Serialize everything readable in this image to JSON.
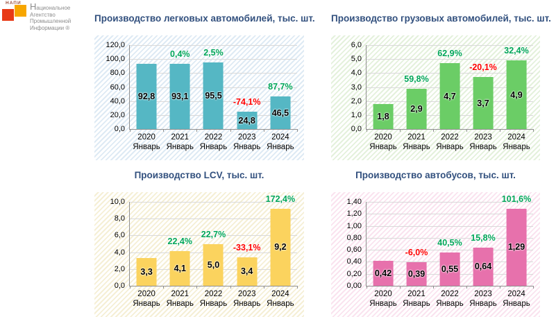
{
  "logo": {
    "acronym": "НАПИ",
    "lines": [
      "Национальное",
      "Агентство",
      "Промышленной",
      "Информации ®"
    ]
  },
  "colors": {
    "title": "#32507e",
    "pct_up": "#00a659",
    "pct_down": "#ff0000",
    "grid": "#d9d9d9",
    "axis": "#8f8f8f"
  },
  "month_label": "Январь",
  "chart_data": [
    {
      "type": "bar",
      "title": "Производство легковых автомобилей, тыс. шт.",
      "bar_color": "#55b7c4",
      "hatch_color": "#deeaf4",
      "y_max": 120,
      "y_ticks": [
        "0,0",
        "20,0",
        "40,0",
        "60,0",
        "80,0",
        "100,0",
        "120,0"
      ],
      "categories": [
        {
          "year": "2020",
          "month": "Январь"
        },
        {
          "year": "2021",
          "month": "Январь"
        },
        {
          "year": "2022",
          "month": "Январь"
        },
        {
          "year": "2023",
          "month": "Январь"
        },
        {
          "year": "2024",
          "month": "Январь"
        }
      ],
      "values": [
        92.8,
        93.1,
        95.5,
        24.8,
        46.5
      ],
      "value_labels": [
        "92,8",
        "93,1",
        "95,5",
        "24,8",
        "46,5"
      ],
      "pct_labels": [
        null,
        {
          "text": "0,4%",
          "dir": "up"
        },
        {
          "text": "2,5%",
          "dir": "up"
        },
        {
          "text": "-74,1%",
          "dir": "down"
        },
        {
          "text": "87,7%",
          "dir": "up"
        }
      ]
    },
    {
      "type": "bar",
      "title": "Производство грузовых автомобилей, тыс. шт.",
      "bar_color": "#6bcd66",
      "hatch_color": "#e4f1dc",
      "y_max": 6,
      "y_ticks": [
        "0,0",
        "1,0",
        "2,0",
        "3,0",
        "4,0",
        "5,0",
        "6,0"
      ],
      "categories": [
        {
          "year": "2020",
          "month": "Январь"
        },
        {
          "year": "2021",
          "month": "Январь"
        },
        {
          "year": "2022",
          "month": "Январь"
        },
        {
          "year": "2023",
          "month": "Январь"
        },
        {
          "year": "2024",
          "month": "Январь"
        }
      ],
      "values": [
        1.8,
        2.9,
        4.7,
        3.7,
        4.9
      ],
      "value_labels": [
        "1,8",
        "2,9",
        "4,7",
        "3,7",
        "4,9"
      ],
      "pct_labels": [
        null,
        {
          "text": "59,8%",
          "dir": "up"
        },
        {
          "text": "62,9%",
          "dir": "up"
        },
        {
          "text": "-20,1%",
          "dir": "down"
        },
        {
          "text": "32,4%",
          "dir": "up"
        }
      ]
    },
    {
      "type": "bar",
      "title": "Производство LCV, тыс. шт.",
      "bar_color": "#fbd35e",
      "hatch_color": "#f5efd5",
      "y_max": 10,
      "y_ticks": [
        "0,0",
        "2,0",
        "4,0",
        "6,0",
        "8,0",
        "10,0"
      ],
      "categories": [
        {
          "year": "2020",
          "month": "Январь"
        },
        {
          "year": "2021",
          "month": "Январь"
        },
        {
          "year": "2022",
          "month": "Январь"
        },
        {
          "year": "2023",
          "month": "Январь"
        },
        {
          "year": "2024",
          "month": "Январь"
        }
      ],
      "values": [
        3.3,
        4.1,
        5.0,
        3.4,
        9.2
      ],
      "value_labels": [
        "3,3",
        "4,1",
        "5,0",
        "3,4",
        "9,2"
      ],
      "pct_labels": [
        null,
        {
          "text": "22,4%",
          "dir": "up"
        },
        {
          "text": "22,7%",
          "dir": "up"
        },
        {
          "text": "-33,1%",
          "dir": "down"
        },
        {
          "text": "172,4%",
          "dir": "up"
        }
      ]
    },
    {
      "type": "bar",
      "title": "Производство автобусов, тыс. шт.",
      "bar_color": "#e771ac",
      "hatch_color": "#fae3ef",
      "y_max": 1.4,
      "y_ticks": [
        "0,00",
        "0,20",
        "0,40",
        "0,60",
        "0,80",
        "1,00",
        "1,20",
        "1,40"
      ],
      "categories": [
        {
          "year": "2020",
          "month": "Январь"
        },
        {
          "year": "2021",
          "month": "Январь"
        },
        {
          "year": "2022",
          "month": "Январь"
        },
        {
          "year": "2023",
          "month": "Январь"
        },
        {
          "year": "2024",
          "month": "Январь"
        }
      ],
      "values": [
        0.42,
        0.39,
        0.55,
        0.64,
        1.29
      ],
      "value_labels": [
        "0,42",
        "0,39",
        "0,55",
        "0,64",
        "1,29"
      ],
      "pct_labels": [
        null,
        {
          "text": "-6,0%",
          "dir": "down"
        },
        {
          "text": "40,5%",
          "dir": "up"
        },
        {
          "text": "15,8%",
          "dir": "up"
        },
        {
          "text": "101,6%",
          "dir": "up"
        }
      ]
    }
  ]
}
